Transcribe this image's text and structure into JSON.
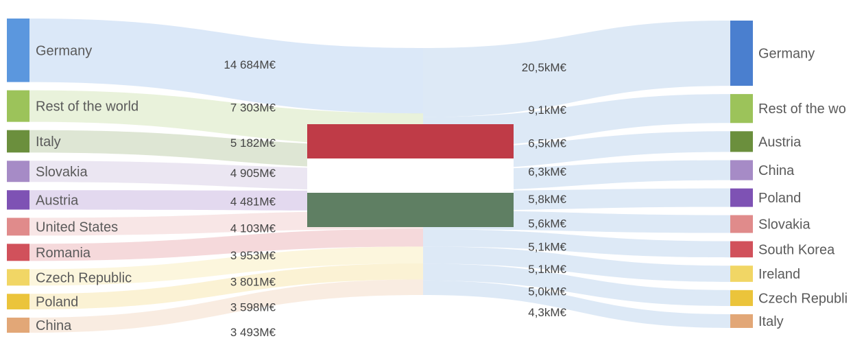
{
  "chart_data": {
    "type": "sankey",
    "flag_colors": [
      "#bf3b47",
      "#ffffff",
      "#5f7f63"
    ],
    "link_color_right": "#dde9f6",
    "imports": [
      {
        "name": "Germany",
        "value_label": "14 684M€",
        "value": 14684,
        "color": "#5b97de"
      },
      {
        "name": "Rest of the world",
        "value_label": "7 303M€",
        "value": 7303,
        "color": "#9cc35a"
      },
      {
        "name": "Italy",
        "value_label": "5 182M€",
        "value": 5182,
        "color": "#6b8f3d"
      },
      {
        "name": "Slovakia",
        "value_label": "4 905M€",
        "value": 4905,
        "color": "#a68bc6"
      },
      {
        "name": "Austria",
        "value_label": "4 481M€",
        "value": 4481,
        "color": "#7e52b4"
      },
      {
        "name": "United States",
        "value_label": "4 103M€",
        "value": 4103,
        "color": "#e08b8b"
      },
      {
        "name": "Romania",
        "value_label": "3 953M€",
        "value": 3953,
        "color": "#d1515b"
      },
      {
        "name": "Czech Republic",
        "value_label": "3 801M€",
        "value": 3801,
        "color": "#f1d665"
      },
      {
        "name": "Poland",
        "value_label": "3 598M€",
        "value": 3598,
        "color": "#ebc43b"
      },
      {
        "name": "China",
        "value_label": "3 493M€",
        "value": 3493,
        "color": "#e2a777"
      }
    ],
    "exports": [
      {
        "name": "Germany",
        "value_label": "20,5kM€",
        "value": 20500,
        "color": "#4a7fcf"
      },
      {
        "name": "Rest of the wo",
        "value_label": "9,1kM€",
        "value": 9100,
        "color": "#9cc35a"
      },
      {
        "name": "Austria",
        "value_label": "6,5kM€",
        "value": 6500,
        "color": "#6b8f3d"
      },
      {
        "name": "China",
        "value_label": "6,3kM€",
        "value": 6300,
        "color": "#a68bc6"
      },
      {
        "name": "Poland",
        "value_label": "5,8kM€",
        "value": 5800,
        "color": "#7e52b4"
      },
      {
        "name": "Slovakia",
        "value_label": "5,6kM€",
        "value": 5600,
        "color": "#e08b8b"
      },
      {
        "name": "South Korea",
        "value_label": "5,1kM€",
        "value": 5100,
        "color": "#d1515b"
      },
      {
        "name": "Ireland",
        "value_label": "5,1kM€",
        "value": 5100,
        "color": "#f1d665"
      },
      {
        "name": "Czech Republi",
        "value_label": "5,0kM€",
        "value": 5000,
        "color": "#ebc43b"
      },
      {
        "name": "Italy",
        "value_label": "4,3kM€",
        "value": 4300,
        "color": "#e2a777"
      }
    ]
  }
}
